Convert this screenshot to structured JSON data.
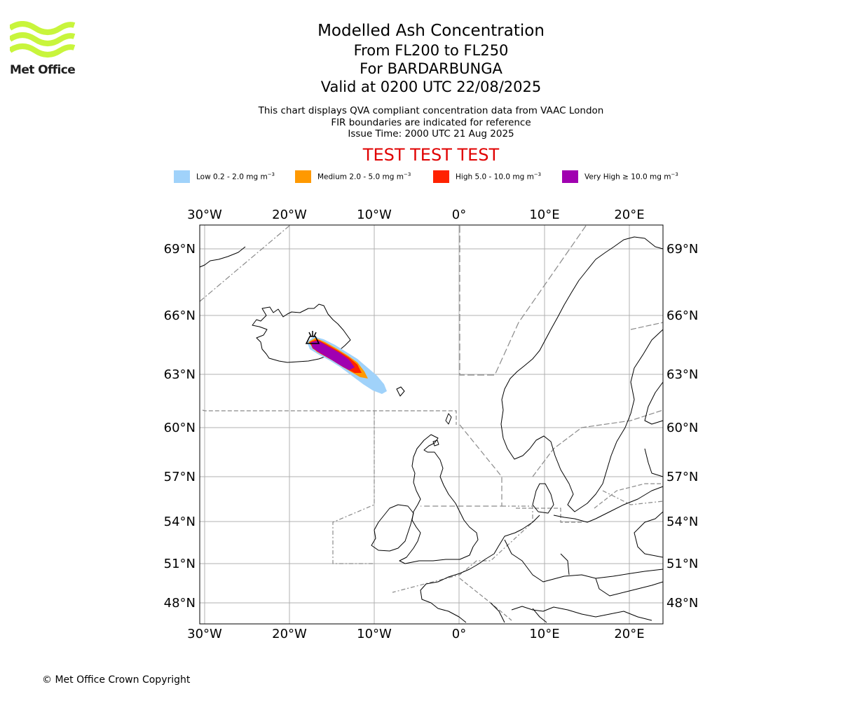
{
  "logo": {
    "text": "Met Office",
    "color": "#c8f53c"
  },
  "title": {
    "line1": "Modelled Ash Concentration",
    "line2": "From FL200 to FL250",
    "line3": "For BARDARBUNGA",
    "line4": "Valid at 0200 UTC 22/08/2025"
  },
  "subtitle": {
    "line1": "This chart displays QVA compliant concentration data from VAAC London",
    "line2": "FIR boundaries are indicated for reference",
    "line3": "Issue Time: 2000 UTC 21 Aug 2025"
  },
  "banner": "TEST TEST TEST",
  "legend": [
    {
      "prefix": "Low 0.2 - 2.0 mg m",
      "exp": "−3",
      "color": "#a0d2fa"
    },
    {
      "prefix": "Medium 2.0 - 5.0 mg m",
      "exp": "−3",
      "color": "#ff9900"
    },
    {
      "prefix": "High 5.0 - 10.0 mg m",
      "exp": "−3",
      "color": "#ff2200"
    },
    {
      "prefix": "Very High  ≥  10.0 mg m",
      "exp": "−3",
      "color": "#a000b0"
    }
  ],
  "map": {
    "lon_labels": [
      "30°W",
      "20°W",
      "10°W",
      "0°",
      "10°E",
      "20°E"
    ],
    "lat_labels": [
      "69°N",
      "66°N",
      "63°N",
      "60°N",
      "57°N",
      "54°N",
      "51°N",
      "48°N"
    ],
    "volcano_icon": "volcano-icon"
  },
  "copyright": "© Met Office Crown Copyright"
}
